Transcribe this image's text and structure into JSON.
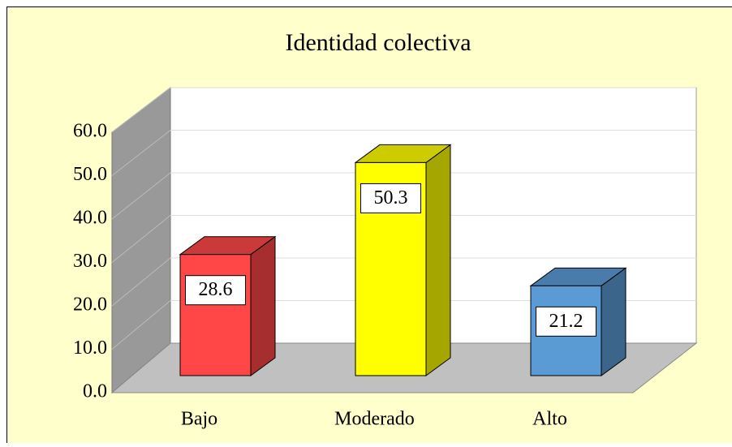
{
  "chart_data": {
    "type": "bar3d",
    "title": "Identidad colectiva",
    "categories": [
      "Bajo",
      "Moderado",
      "Alto"
    ],
    "values": [
      28.6,
      50.3,
      21.2
    ],
    "colors": [
      "#ff4747",
      "#ffff00",
      "#5b9bd5"
    ],
    "ylim": [
      0,
      60
    ],
    "yticks": [
      {
        "value": 0,
        "label": "0.0"
      },
      {
        "value": 10,
        "label": "10.0"
      },
      {
        "value": 20,
        "label": "20.0"
      },
      {
        "value": 30,
        "label": "30.0"
      },
      {
        "value": 40,
        "label": "40.0"
      },
      {
        "value": 50,
        "label": "50.0"
      },
      {
        "value": 60,
        "label": "60.0"
      }
    ],
    "grid": true
  }
}
